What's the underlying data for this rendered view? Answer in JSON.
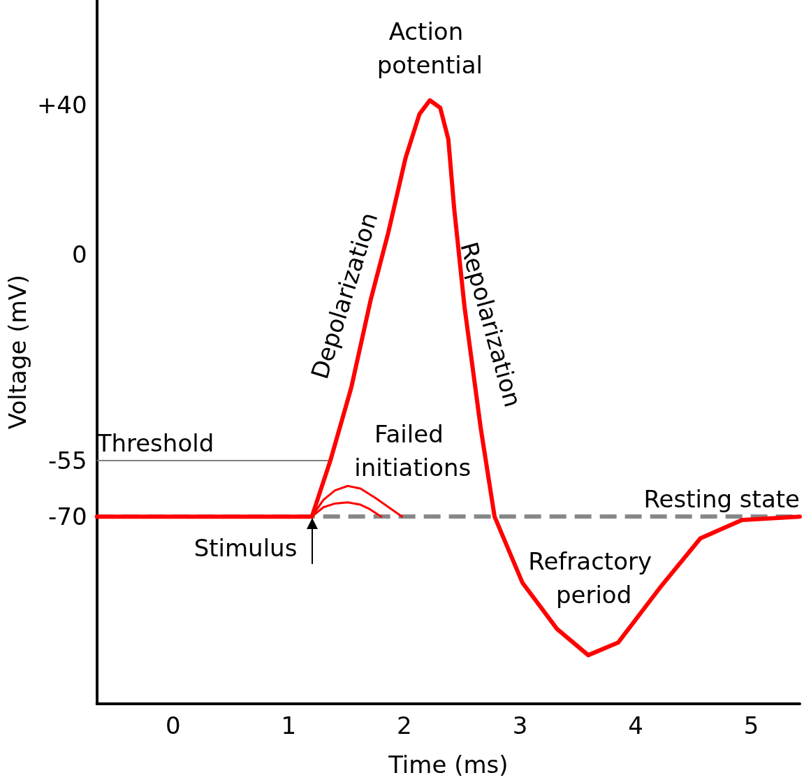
{
  "chart_data": {
    "type": "line",
    "xlabel": "Time (ms)",
    "ylabel": "Voltage (mV)",
    "xlim": [
      -0.66,
      5.42
    ],
    "ylim": [
      -120,
      68
    ],
    "xticks": [
      0,
      1,
      2,
      3,
      4,
      5
    ],
    "yticks": [
      -70,
      -55,
      0,
      {
        "value": 40,
        "label": "+40"
      }
    ],
    "marker": "none",
    "line_style": "solid",
    "series": [
      {
        "color": "#ff0000",
        "x": [
          -0.66,
          1.2,
          1.36,
          1.54,
          1.71,
          1.86,
          2.01,
          2.13,
          2.22,
          2.31,
          2.38,
          2.43,
          2.52,
          2.66,
          2.78,
          3.02,
          3.32,
          3.59,
          3.85,
          4.21,
          4.56,
          4.92,
          5.42
        ],
        "values": [
          -70,
          -70,
          -55,
          -35.6,
          -11.9,
          5.8,
          25.8,
          37.5,
          41.2,
          39.2,
          30.8,
          12.5,
          -14,
          -46.3,
          -70,
          -87.6,
          -100,
          -107,
          -103.6,
          -89,
          -75.8,
          -70.9,
          -70
        ]
      },
      {
        "color": "#ff0000",
        "x": [
          1.2,
          1.3,
          1.4,
          1.51,
          1.62,
          1.75,
          1.98
        ],
        "values": [
          -70,
          -65.5,
          -63,
          -61.8,
          -62.5,
          -65,
          -70
        ]
      },
      {
        "color": "#ff0000",
        "x": [
          1.2,
          1.3,
          1.4,
          1.51,
          1.62,
          1.7,
          1.8
        ],
        "values": [
          -70,
          -67.5,
          -66.5,
          -66.2,
          -66.8,
          -68,
          -70
        ]
      }
    ],
    "ref_lines": [
      {
        "axis": "y",
        "value": -55,
        "label": "Threshold",
        "color": "#808080",
        "line_style": "solid"
      },
      {
        "axis": "y",
        "value": -70,
        "label": "Resting state",
        "color": "#888888",
        "line_style": "dashed"
      }
    ],
    "annotations": [
      {
        "text": "Action potential",
        "x": 2.22,
        "y": 41.2
      },
      {
        "text": "Depolarization",
        "x": 1.71,
        "y": -11.9
      },
      {
        "text": "Repolarization",
        "x": 2.52,
        "y": -14
      },
      {
        "text": "Failed initiations",
        "x": 1.51,
        "y": -61.8
      },
      {
        "text": "Refractory period",
        "x": 3.59,
        "y": -107
      },
      {
        "text": "Stimulus",
        "x": 1.2,
        "y": -70
      }
    ]
  }
}
